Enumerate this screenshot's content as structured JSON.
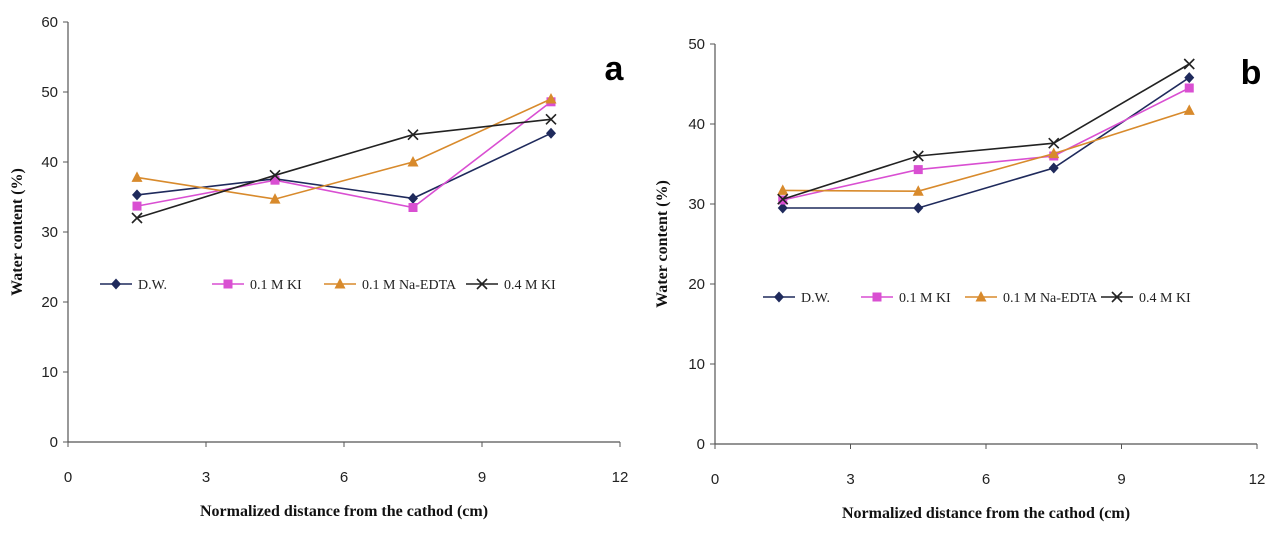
{
  "chart_data": [
    {
      "type": "line",
      "panel_label": "a",
      "xlabel": "Normalized distance from the cathod (cm)",
      "ylabel": "Water content (%)",
      "xlim": [
        0,
        12
      ],
      "ylim": [
        0,
        60
      ],
      "xticks": [
        0,
        3,
        6,
        9,
        12
      ],
      "yticks": [
        0,
        10,
        20,
        30,
        40,
        50,
        60
      ],
      "grid": false,
      "legend_position": "middle-left inside plot",
      "x": [
        1.5,
        4.5,
        7.5,
        10.5
      ],
      "series": [
        {
          "name": "D.W.",
          "values": [
            35.3,
            37.6,
            34.8,
            44.1
          ],
          "color": "#1f2a5c",
          "marker": "diamond"
        },
        {
          "name": "0.1 M KI",
          "values": [
            33.7,
            37.4,
            33.5,
            48.6
          ],
          "color": "#d94fd2",
          "marker": "square"
        },
        {
          "name": "0.1 M Na-EDTA",
          "values": [
            37.8,
            34.7,
            40.0,
            49.0
          ],
          "color": "#d88a2c",
          "marker": "triangle"
        },
        {
          "name": "0.4 M KI",
          "values": [
            32.0,
            38.1,
            43.9,
            46.1
          ],
          "color": "#222222",
          "marker": "x"
        }
      ]
    },
    {
      "type": "line",
      "panel_label": "b",
      "xlabel": "Normalized distance from the cathod (cm)",
      "ylabel": "Water content (%)",
      "xlim": [
        0,
        12
      ],
      "ylim": [
        0,
        50
      ],
      "xticks": [
        0,
        3,
        6,
        9,
        12
      ],
      "yticks": [
        0,
        10,
        20,
        30,
        40,
        50
      ],
      "grid": false,
      "legend_position": "middle-left inside plot",
      "x": [
        1.5,
        4.5,
        7.5,
        10.5
      ],
      "series": [
        {
          "name": "D.W.",
          "values": [
            29.5,
            29.5,
            34.5,
            45.8
          ],
          "color": "#1f2a5c",
          "marker": "diamond"
        },
        {
          "name": "0.1 M KI",
          "values": [
            30.5,
            34.3,
            36.0,
            44.5
          ],
          "color": "#d94fd2",
          "marker": "square"
        },
        {
          "name": "0.1 M Na-EDTA",
          "values": [
            31.7,
            31.6,
            36.3,
            41.7
          ],
          "color": "#d88a2c",
          "marker": "triangle"
        },
        {
          "name": "0.4 M KI",
          "values": [
            30.6,
            36.0,
            37.6,
            47.5
          ],
          "color": "#222222",
          "marker": "x"
        }
      ]
    }
  ]
}
